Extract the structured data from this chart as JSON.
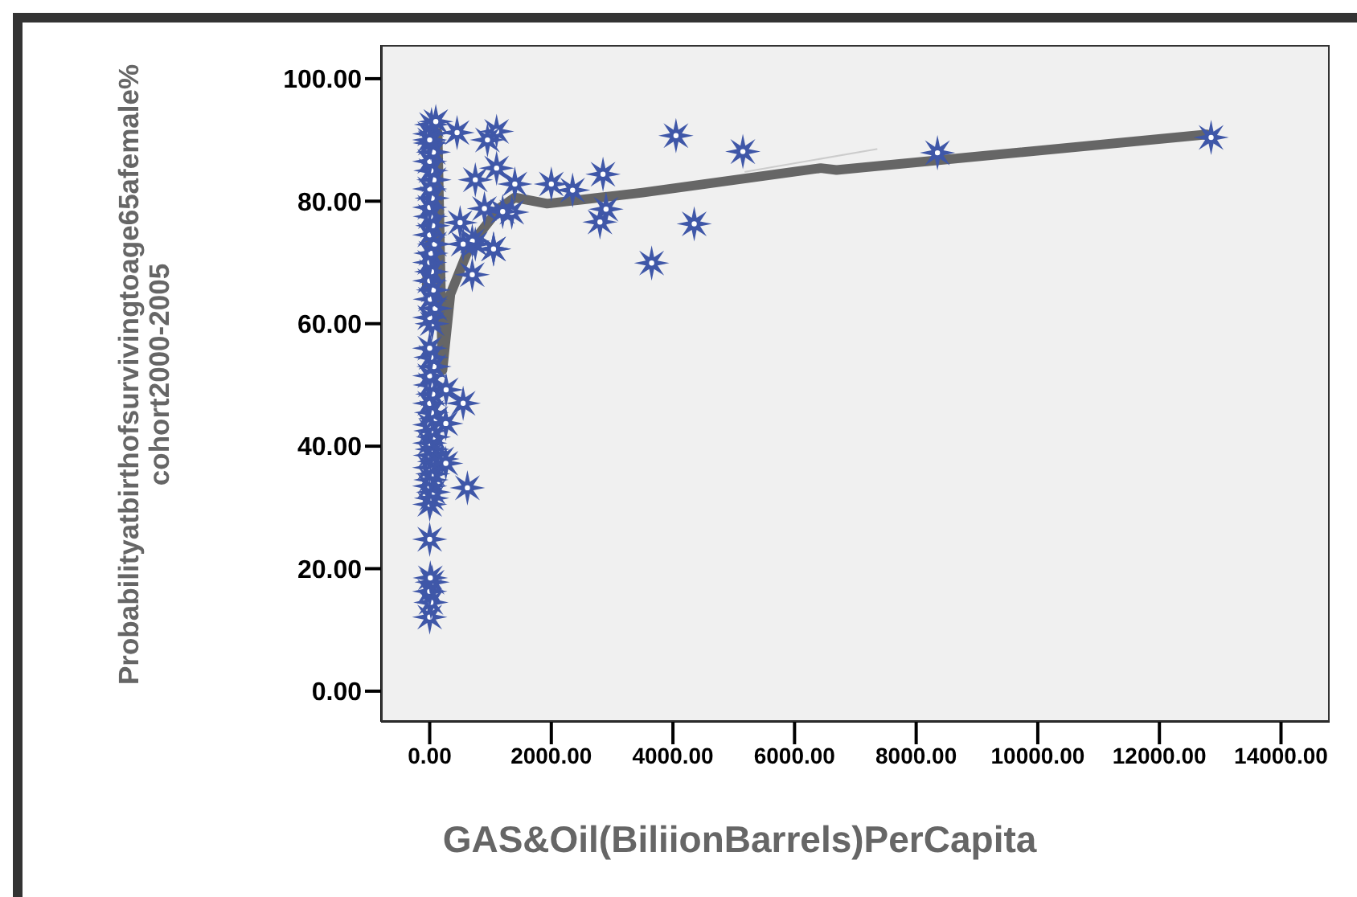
{
  "chart_data": {
    "type": "scatter",
    "xlabel": "GAS&Oil(BiliionBarrels)PerCapita",
    "ylabel": "Probabilityatbirthofsurvivingtoage65afemale%\ncohort2000-2005",
    "xlim": [
      -800,
      14800
    ],
    "ylim": [
      -5,
      105.5
    ],
    "xticks": [
      {
        "value": 0,
        "label": "0.00"
      },
      {
        "value": 2000,
        "label": "2000.00"
      },
      {
        "value": 4000,
        "label": "4000.00"
      },
      {
        "value": 6000,
        "label": "6000.00"
      },
      {
        "value": 8000,
        "label": "8000.00"
      },
      {
        "value": 10000,
        "label": "10000.00"
      },
      {
        "value": 12000,
        "label": "12000.00"
      },
      {
        "value": 14000,
        "label": "14000.00"
      }
    ],
    "yticks": [
      {
        "value": 0,
        "label": "0.00"
      },
      {
        "value": 20,
        "label": "20.00"
      },
      {
        "value": 40,
        "label": "40.00"
      },
      {
        "value": 60,
        "label": "60.00"
      },
      {
        "value": 80,
        "label": "80.00"
      },
      {
        "value": 100,
        "label": "100.00"
      }
    ],
    "grid": false,
    "series": [
      {
        "marker": "star",
        "color": "#3f57a8",
        "x": [
          0,
          20,
          0,
          40,
          10,
          0,
          0,
          30,
          60,
          0,
          20,
          50,
          0,
          80,
          10,
          40,
          0,
          60,
          20,
          0,
          100,
          30,
          0,
          50,
          10,
          0,
          70,
          20,
          0,
          40,
          0,
          90,
          10,
          60,
          0,
          30,
          0,
          20,
          80,
          0,
          50,
          10,
          0,
          40,
          0,
          70,
          20,
          0,
          60,
          10,
          0,
          30,
          100,
          0,
          12850,
          8350,
          5150,
          4050,
          4350,
          3650,
          2850,
          2900,
          2800,
          2350,
          2000,
          1400,
          1350,
          1100,
          950,
          1100,
          750,
          700,
          750,
          1050,
          700,
          500,
          450,
          550,
          620,
          270,
          200,
          265,
          265,
          1200,
          900,
          1050,
          550
        ],
        "values": [
          12.1,
          14.5,
          16.3,
          17.8,
          18.5,
          24.8,
          30.5,
          31.5,
          32.5,
          33.5,
          34.5,
          35.5,
          36.5,
          37.5,
          38.5,
          39.5,
          40.5,
          41.5,
          42.5,
          43.5,
          44.5,
          45.5,
          47,
          48.5,
          50,
          51.5,
          53,
          54.5,
          56,
          60,
          61,
          62.5,
          64,
          65.5,
          67,
          68.5,
          70,
          71.5,
          73,
          74.5,
          76,
          77.5,
          79,
          80.5,
          82,
          83.5,
          85,
          86.5,
          88,
          89.5,
          91,
          92.5,
          93,
          90,
          90.4,
          87.9,
          88.1,
          90.7,
          76.3,
          69.9,
          84.4,
          78.7,
          76.6,
          81.8,
          82.8,
          82.8,
          78.2,
          91.4,
          90,
          85.4,
          83.5,
          68,
          73,
          72.2,
          73.5,
          76.5,
          91.2,
          47,
          33.2,
          49.2,
          37.9,
          43.7,
          37.2,
          78.3,
          78.8,
          72.2,
          73
        ]
      },
      {
        "type": "line",
        "color": "#666666",
        "x": [
          -50,
          130,
          210,
          340,
          660,
          1140,
          1400,
          1930,
          2800,
          3500,
          6430,
          6690,
          12780
        ],
        "values": [
          66.4,
          91.2,
          52.4,
          64.8,
          72.7,
          78.8,
          80.6,
          79.6,
          80.6,
          81.4,
          85.4,
          85.1,
          90.9
        ]
      },
      {
        "type": "line",
        "color": "#cccccc",
        "x": [
          5190,
          7350
        ],
        "values": [
          84.8,
          88.5
        ]
      }
    ]
  }
}
